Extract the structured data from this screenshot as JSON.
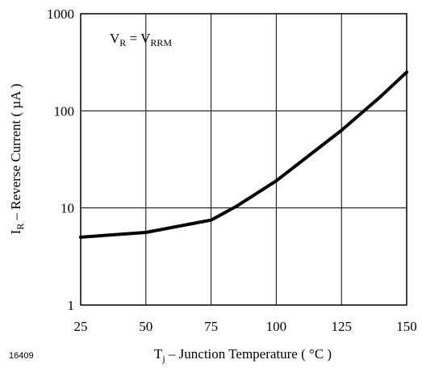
{
  "chart_data": {
    "type": "line",
    "scale": {
      "x": "linear",
      "y": "log"
    },
    "xlim": [
      25,
      150
    ],
    "ylim": [
      1,
      1000
    ],
    "x_ticks": [
      "25",
      "50",
      "75",
      "100",
      "125",
      "150"
    ],
    "y_ticks": [
      "1",
      "10",
      "100",
      "1000"
    ],
    "grid": true,
    "xlabel": {
      "main": "T",
      "sub": "j",
      "rest": " – Junction Temperature ( °C )"
    },
    "ylabel": {
      "main": "I",
      "sub": "R",
      "rest": " – Reverse Current ( µA )"
    },
    "annotation": {
      "v1": "V",
      "s1": "R",
      "eq": " = V",
      "s2": "RRM"
    },
    "series": [
      {
        "points": [
          [
            25,
            5.0
          ],
          [
            50,
            5.6
          ],
          [
            75,
            7.5
          ],
          [
            85,
            10.5
          ],
          [
            100,
            19
          ],
          [
            125,
            63
          ],
          [
            140,
            140
          ],
          [
            150,
            250
          ]
        ]
      }
    ],
    "line_color": "#000000"
  },
  "figure_number": "16409"
}
